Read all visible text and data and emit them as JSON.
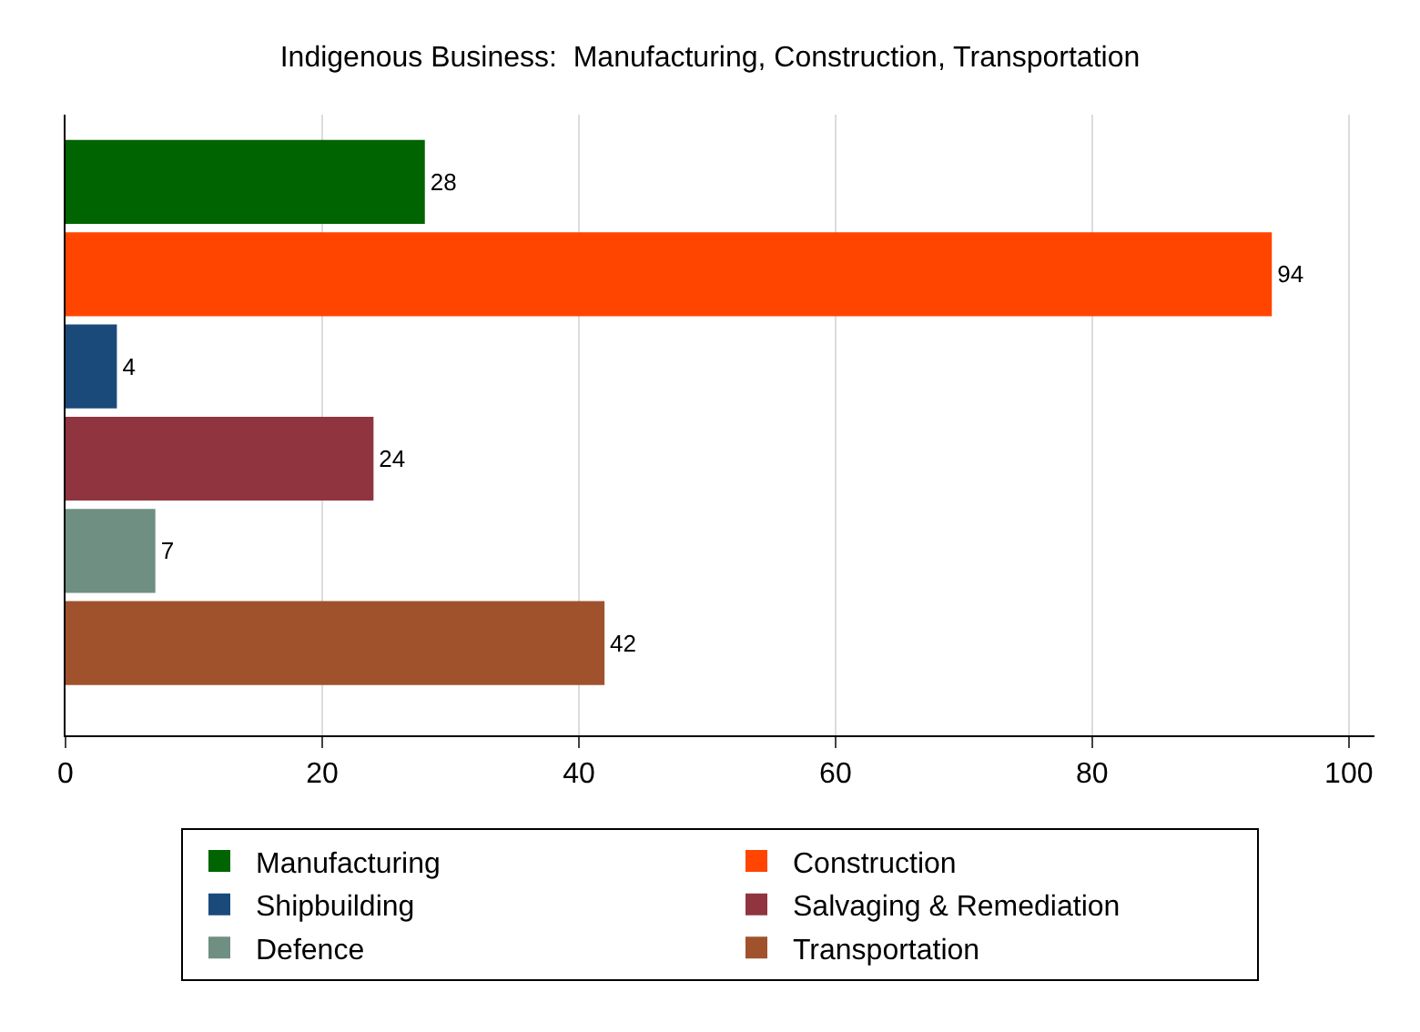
{
  "chart_data": {
    "type": "bar",
    "orientation": "horizontal",
    "title": "Indigenous Business:  Manufacturing, Construction, Transportation",
    "categories": [
      null,
      null,
      null,
      null,
      null,
      null
    ],
    "series": [
      {
        "name": "Manufacturing",
        "color": "#006400",
        "values": [
          28,
          null,
          null,
          null,
          null,
          null
        ]
      },
      {
        "name": "Construction",
        "color": "#ff4500",
        "values": [
          null,
          94,
          null,
          null,
          null,
          null
        ]
      },
      {
        "name": "Shipbuilding",
        "color": "#1a4a7a",
        "values": [
          null,
          null,
          4,
          null,
          null,
          null
        ]
      },
      {
        "name": "Salvaging & Remediation",
        "color": "#90353f",
        "values": [
          null,
          null,
          null,
          24,
          null,
          null
        ]
      },
      {
        "name": "Defence",
        "color": "#6f8f82",
        "values": [
          null,
          null,
          null,
          null,
          7,
          null
        ]
      },
      {
        "name": "Transportation",
        "color": "#a0522d",
        "values": [
          null,
          null,
          null,
          null,
          null,
          42
        ]
      }
    ],
    "xlim": [
      0,
      102
    ],
    "xticks": [
      0,
      20,
      40,
      60,
      80,
      100
    ],
    "grid": "x",
    "legend": "bottom",
    "data_labels": true
  }
}
